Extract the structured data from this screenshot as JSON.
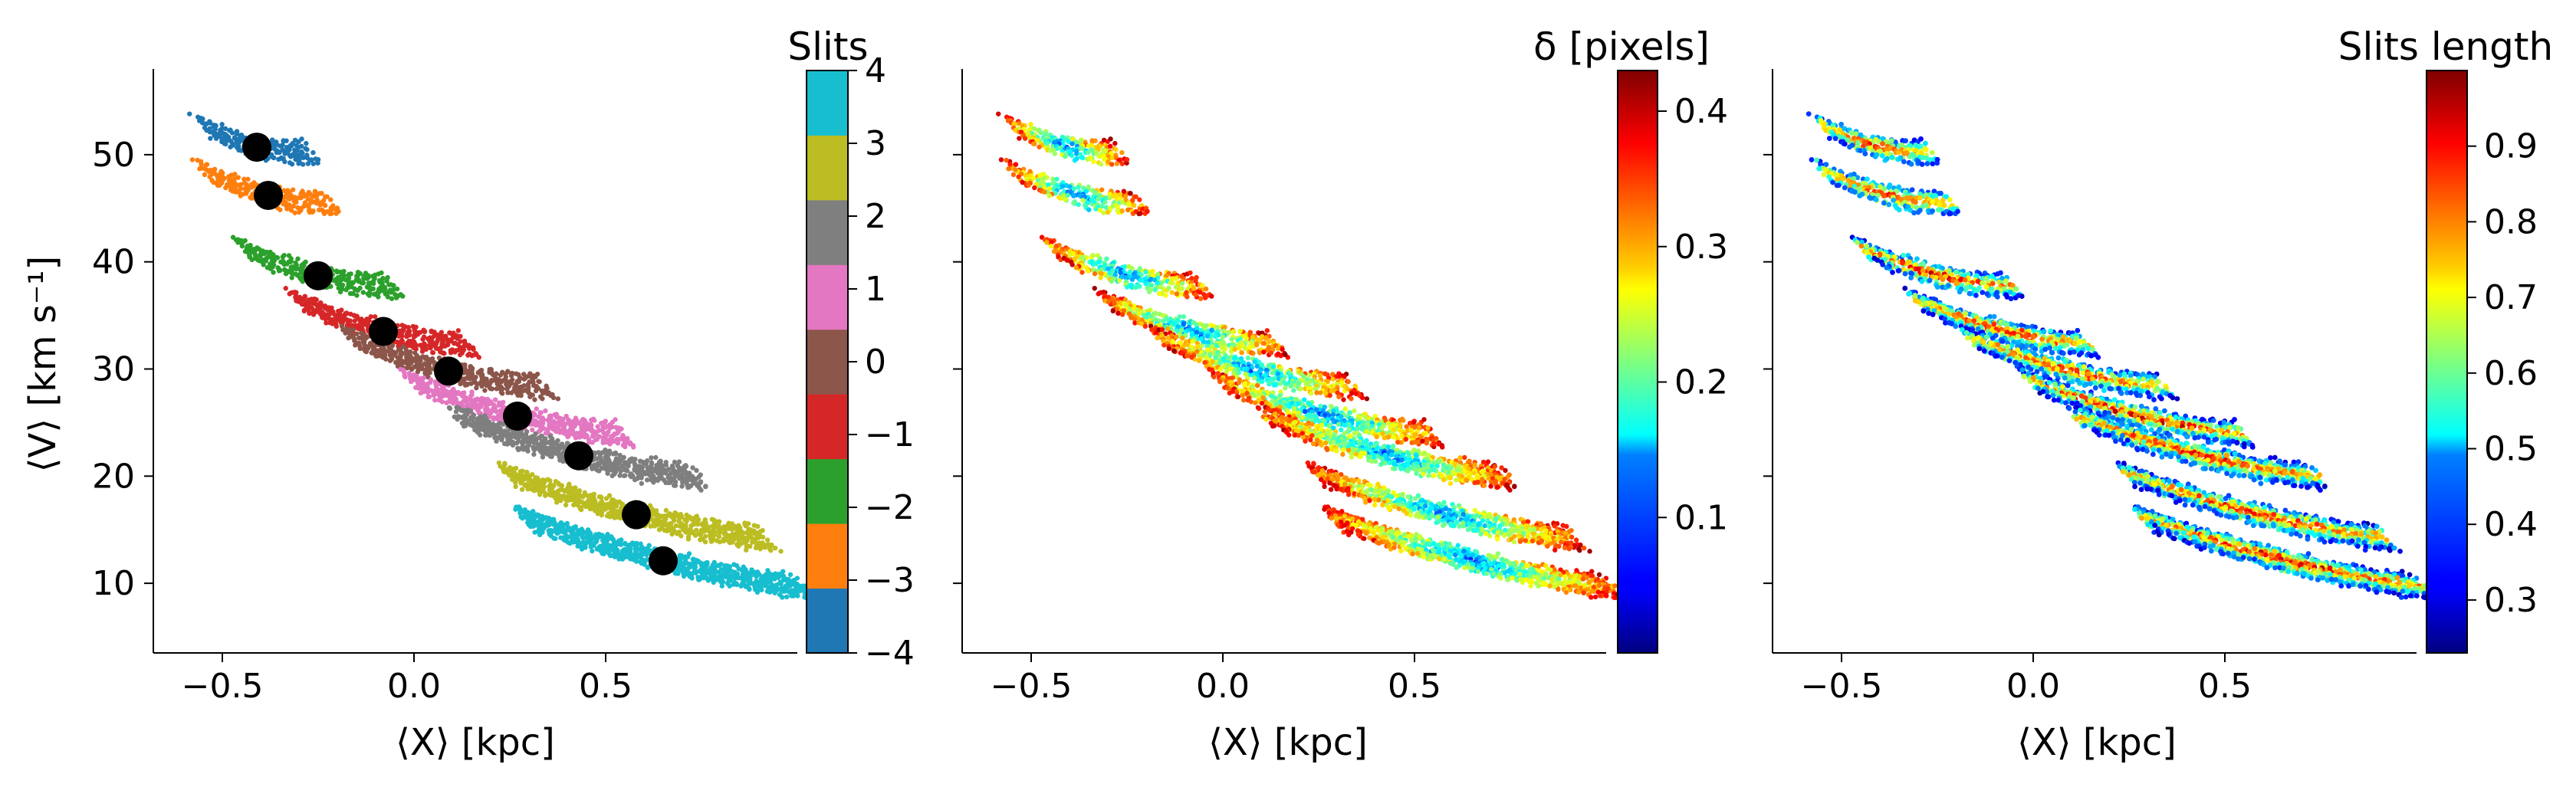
{
  "chart_data": [
    {
      "type": "scatter",
      "xlabel": "⟨X⟩ [kpc]",
      "ylabel": "⟨V⟩ [km s⁻¹]",
      "xlim": [
        -0.68,
        1.0
      ],
      "ylim": [
        3.5,
        58
      ],
      "xticks": [
        "−0.5",
        "0.0",
        "0.5"
      ],
      "xtick_values": [
        -0.5,
        0.0,
        0.5
      ],
      "yticks": [
        "10",
        "20",
        "30",
        "40",
        "50"
      ],
      "ytick_values": [
        10,
        20,
        30,
        40,
        50
      ],
      "colorbar": {
        "title": "Slits",
        "colormap": "tab10",
        "range": [
          -4,
          4
        ],
        "ticks": [
          "−4",
          "−3",
          "−2",
          "−1",
          "0",
          "1",
          "2",
          "3",
          "4"
        ],
        "tick_values": [
          -4,
          -3,
          -2,
          -1,
          0,
          1,
          2,
          3,
          4
        ]
      },
      "series": [
        {
          "slit": -4,
          "color": "#1f77b4",
          "center_x": -0.41,
          "center_y": 50.7
        },
        {
          "slit": -3,
          "color": "#ff7f0e",
          "center_x": -0.38,
          "center_y": 46.2
        },
        {
          "slit": -2,
          "color": "#2ca02c",
          "center_x": -0.25,
          "center_y": 38.7
        },
        {
          "slit": -1,
          "color": "#d62728",
          "center_x": -0.08,
          "center_y": 33.5
        },
        {
          "slit": 0,
          "color": "#8c564b",
          "center_x": 0.09,
          "center_y": 29.8
        },
        {
          "slit": 1,
          "color": "#e377c2",
          "center_x": 0.27,
          "center_y": 25.6
        },
        {
          "slit": 2,
          "color": "#7f7f7f",
          "center_x": 0.43,
          "center_y": 21.9
        },
        {
          "slit": 3,
          "color": "#bcbd22",
          "center_x": 0.58,
          "center_y": 16.4
        },
        {
          "slit": 4,
          "color": "#17becf",
          "center_x": 0.65,
          "center_y": 12.1
        }
      ],
      "black_markers": [
        {
          "x": -0.41,
          "y": 50.7
        },
        {
          "x": -0.38,
          "y": 46.2
        },
        {
          "x": -0.25,
          "y": 38.7
        },
        {
          "x": -0.08,
          "y": 33.5
        },
        {
          "x": 0.09,
          "y": 29.8
        },
        {
          "x": 0.27,
          "y": 25.6
        },
        {
          "x": 0.43,
          "y": 21.9
        },
        {
          "x": 0.58,
          "y": 16.4
        },
        {
          "x": 0.65,
          "y": 12.1
        }
      ]
    },
    {
      "type": "scatter",
      "xlabel": "⟨X⟩ [kpc]",
      "xlim": [
        -0.68,
        1.0
      ],
      "ylim": [
        3.5,
        58
      ],
      "xticks": [
        "−0.5",
        "0.0",
        "0.5"
      ],
      "xtick_values": [
        -0.5,
        0.0,
        0.5
      ],
      "colorbar": {
        "title": "δ [pixels]",
        "colormap": "jet",
        "range": [
          0.0,
          0.43
        ],
        "ticks": [
          "0.1",
          "0.2",
          "0.3",
          "0.4"
        ],
        "tick_values": [
          0.1,
          0.2,
          0.3,
          0.4
        ]
      }
    },
    {
      "type": "scatter",
      "xlabel": "⟨X⟩ [kpc]",
      "xlim": [
        -0.68,
        1.0
      ],
      "ylim": [
        3.5,
        58
      ],
      "xticks": [
        "−0.5",
        "0.0",
        "0.5"
      ],
      "xtick_values": [
        -0.5,
        0.0,
        0.5
      ],
      "colorbar": {
        "title": "Slits length",
        "colormap": "jet",
        "range": [
          0.23,
          1.0
        ],
        "ticks": [
          "0.3",
          "0.4",
          "0.5",
          "0.6",
          "0.7",
          "0.8",
          "0.9"
        ],
        "tick_values": [
          0.3,
          0.4,
          0.5,
          0.6,
          0.7,
          0.8,
          0.9
        ]
      }
    }
  ]
}
